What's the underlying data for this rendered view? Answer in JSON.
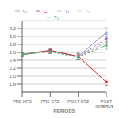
{
  "chart_data": {
    "type": "line",
    "xlabel": "PERIODS",
    "categories": [
      "PRE HFD",
      "PRE STZ",
      "POST STZ",
      "POST\nINTERVEN"
    ],
    "series": [
      {
        "name": "C₁",
        "color": "#7799cc",
        "line_style": "solid",
        "marker": "diamond",
        "values": [
          2.55,
          2.65,
          2.5,
          3.1
        ],
        "errors": [
          0.05,
          0.05,
          0.08,
          0.12
        ]
      },
      {
        "name": "C₂",
        "color": "#dd2222",
        "line_style": "solid",
        "marker": "square",
        "values": [
          2.55,
          2.65,
          2.5,
          1.85
        ],
        "errors": [
          0.05,
          0.06,
          0.08,
          0.08
        ]
      },
      {
        "name": "T₁",
        "color": "#9966bb",
        "line_style": "dashed",
        "marker": "diamond",
        "values": [
          2.55,
          2.63,
          2.48,
          2.95
        ],
        "errors": [
          0.05,
          0.05,
          0.07,
          0.1
        ]
      },
      {
        "name": "T₂",
        "color": "#aaaaaa",
        "line_style": "dashed",
        "marker": "diamond",
        "values": [
          2.55,
          2.62,
          2.49,
          2.85
        ],
        "errors": [
          0.05,
          0.05,
          0.07,
          0.1
        ]
      },
      {
        "name": "T₃",
        "color": "#55aa66",
        "line_style": "dashed",
        "marker": "diamond",
        "values": [
          2.55,
          2.62,
          2.48,
          2.78
        ],
        "errors": [
          0.05,
          0.05,
          0.07,
          0.1
        ]
      }
    ],
    "ylim": [
      1.6,
      3.4
    ],
    "yticks": [
      1.8,
      {
        "value": 2.0,
        "label": "2.0"
      },
      2.2,
      2.4,
      2.6,
      2.8,
      {
        "value": 3.0,
        "label": "3.0"
      },
      3.2
    ],
    "grid": true,
    "legend": "top"
  }
}
